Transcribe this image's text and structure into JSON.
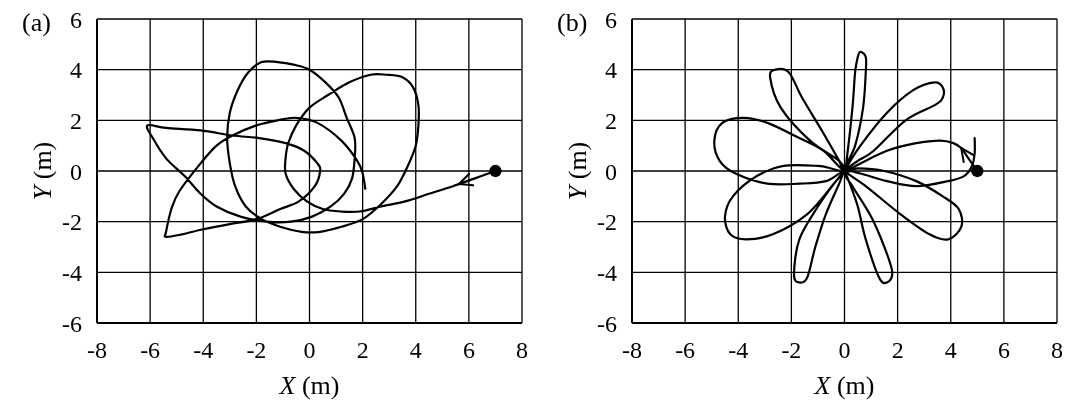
{
  "chart_data": [
    {
      "type": "line",
      "title": "(a)",
      "xlabel": "X (m)",
      "ylabel": "Y (m)",
      "xlim": [
        -8,
        8
      ],
      "ylim": [
        -6,
        6
      ],
      "xticks": [
        -8,
        -6,
        -4,
        -2,
        0,
        2,
        4,
        6,
        8
      ],
      "yticks": [
        -6,
        -4,
        -2,
        0,
        2,
        4,
        6
      ],
      "grid": true,
      "line_style": "solid",
      "series": [
        {
          "color": "#000000",
          "x": [
            7,
            6.2,
            5.4,
            4.5,
            3.6,
            2.7,
            1.9,
            1.2,
            0.5,
            -0.1,
            -0.6,
            -0.9,
            -0.9,
            -0.8,
            -0.5,
            0,
            0.7,
            1.5,
            2.3,
            2.9,
            3.5,
            3.9,
            4.1,
            4.1,
            4,
            3.7,
            3.3,
            2.7,
            2,
            1.2,
            0.4,
            -0.3,
            -1.1,
            -1.8,
            -2.4,
            -2.8,
            -3,
            -3.1,
            -3,
            -2.7,
            -2.3,
            -1.8,
            -1.2,
            -0.6,
            0,
            0.6,
            1.1,
            1.4,
            1.7,
            1.7,
            1.6,
            1.3,
            0.8,
            0.1,
            -0.7,
            -1.6,
            -2.6,
            -3.5,
            -4.1,
            -4.7,
            -5.4,
            -5.9,
            -6.1,
            -5.4,
            -4.1,
            -2.9,
            -1.9,
            -0.9,
            -0.2,
            0.3,
            0.4,
            0.2,
            -0.4,
            -1.1,
            -2,
            -3,
            -4,
            -4.8,
            -5.4,
            -5.4,
            -5.2,
            -4.9,
            -4.1,
            -3.5,
            -2.9,
            -2,
            -1.2,
            -0.5,
            0.3,
            1.2,
            1.8,
            2,
            2.1
          ],
          "values": [
            0,
            -0.3,
            -0.6,
            -0.9,
            -1.2,
            -1.4,
            -1.6,
            -1.6,
            -1.5,
            -1.2,
            -0.7,
            -0.1,
            0.5,
            1.1,
            1.8,
            2.5,
            3,
            3.5,
            3.8,
            3.8,
            3.7,
            3.3,
            2.6,
            1.8,
            1,
            0.2,
            -0.6,
            -1.3,
            -1.9,
            -2.2,
            -2.4,
            -2.4,
            -2.2,
            -1.9,
            -1.4,
            -0.6,
            0.3,
            1.3,
            2.3,
            3.2,
            3.9,
            4.3,
            4.3,
            4.2,
            4,
            3.5,
            2.9,
            2.1,
            1.3,
            0.5,
            -0.3,
            -0.9,
            -1.4,
            -1.8,
            -2,
            -2,
            -1.8,
            -1.4,
            -0.9,
            -0.2,
            0.5,
            1.3,
            1.8,
            1.7,
            1.6,
            1.4,
            1.3,
            1.1,
            0.8,
            0.3,
            0,
            -0.6,
            -1.2,
            -1.5,
            -1.9,
            -2.1,
            -2.3,
            -2.5,
            -2.6,
            -2.4,
            -1.5,
            -0.8,
            0.3,
            1,
            1.4,
            1.8,
            2,
            2.1,
            1.9,
            1.2,
            0.4,
            -0.1,
            -0.7
          ]
        },
        {
          "type": "scatter",
          "color": "#000000",
          "marker": "circle",
          "x": [
            7
          ],
          "values": [
            0
          ]
        }
      ]
    },
    {
      "type": "line",
      "title": "(b)",
      "xlabel": "X (m)",
      "ylabel": "Y (m)",
      "xlim": [
        -8,
        8
      ],
      "ylim": [
        -6,
        6
      ],
      "xticks": [
        -8,
        -6,
        -4,
        -2,
        0,
        2,
        4,
        6,
        8
      ],
      "yticks": [
        -6,
        -4,
        -2,
        0,
        2,
        4,
        6
      ],
      "grid": true,
      "line_style": "solid",
      "series": [
        {
          "color": "#000000",
          "x": [
            5,
            4.8,
            4.6,
            4.4,
            4.1,
            3.6,
            2.7,
            1.6,
            0.6,
            0,
            -0.5,
            -1,
            -2.3,
            -3.3,
            -4.2,
            -4.5,
            -4.3,
            -3.7,
            -2.7,
            -1.4,
            -0.4,
            0,
            0.5,
            1.1,
            2.3,
            3.4,
            3.7,
            3.7,
            3.4,
            2.6,
            1.6,
            0.6,
            0,
            -0.2,
            -0.7,
            -1.1,
            -1.4,
            -1.7,
            -1.9,
            -1.7,
            -1,
            -0.4,
            0,
            0.1,
            0.3,
            0.4,
            0.5,
            0.6,
            0.8,
            0.8,
            0.7,
            0.4,
            0,
            0.3,
            1,
            1.5,
            1.8,
            1.6,
            1.3,
            0.8,
            0.5,
            0.2,
            0,
            -0.2,
            -1.3,
            -2.4,
            -2.8,
            -2.6,
            -2.1,
            -1.6,
            -0.8,
            -0.2,
            0,
            0.8,
            2.1,
            3.2,
            3.9,
            4.4,
            4.3,
            3.7,
            2.7,
            1.5,
            0.5,
            0,
            -0.8,
            -1.7,
            -2.9,
            -3.8,
            -4.6,
            -4.9,
            -4.7,
            -4.1,
            -2.9,
            -1.7,
            -0.7,
            0,
            0.6,
            1.6,
            2.7,
            3.9,
            4.5,
            4.8,
            4.9,
            4.9
          ],
          "values": [
            0,
            0.3,
            0.6,
            0.9,
            1.1,
            1.2,
            1.1,
            0.8,
            0.3,
            0,
            0.1,
            0.2,
            0.2,
            -0.2,
            -1,
            -1.8,
            -2.5,
            -2.7,
            -2.5,
            -1.7,
            -0.5,
            0,
            0.4,
            0.8,
            2,
            2.6,
            2.9,
            3.3,
            3.5,
            3.2,
            2.3,
            1,
            0,
            -0.5,
            -1.7,
            -3,
            -4.2,
            -4.4,
            -4.1,
            -2.7,
            -1.4,
            -0.5,
            0,
            0.6,
            2.5,
            3.9,
            4.5,
            4.7,
            4.5,
            3.9,
            2.5,
            1,
            0,
            -0.6,
            -1.8,
            -3,
            -4,
            -4.4,
            -4.2,
            -2.7,
            -1.4,
            -0.5,
            0,
            0.4,
            1.2,
            2.5,
            3.7,
            4,
            3.9,
            2.9,
            1.5,
            0.4,
            0,
            -0.6,
            -1.7,
            -2.5,
            -2.7,
            -2.2,
            -1.5,
            -1,
            -0.4,
            0,
            0.1,
            0,
            0.8,
            1.3,
            1.9,
            2.1,
            1.9,
            1.2,
            0.4,
            -0.1,
            -0.5,
            -0.5,
            -0.4,
            0,
            -0.1,
            -0.4,
            -0.6,
            -0.4,
            -0.2,
            0.2,
            0.7,
            1.3
          ]
        },
        {
          "type": "scatter",
          "color": "#000000",
          "marker": "circle",
          "x": [
            5
          ],
          "values": [
            0
          ]
        }
      ]
    }
  ]
}
